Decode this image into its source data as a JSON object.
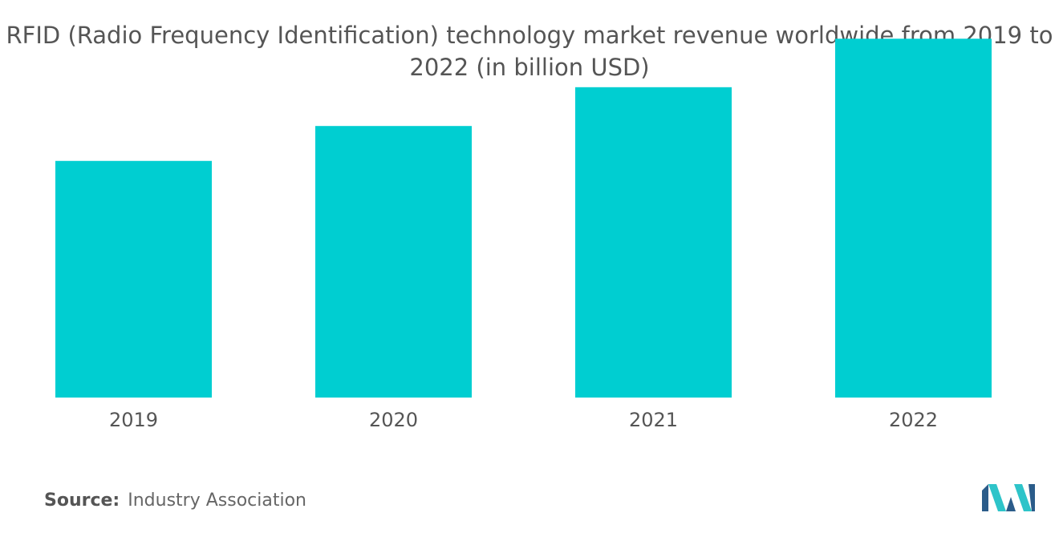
{
  "header": {
    "title_line1": "RFID (Radio Frequency Identification) technology market revenue worldwide from 2019 to",
    "title_line2": "2022 (in billion USD)"
  },
  "footer": {
    "source_label": "Source:",
    "source_value": "Industry Association"
  },
  "colors": {
    "bar": "#00CED1",
    "logo_dark": "#2B5C8A",
    "logo_light": "#2EC4C9"
  },
  "icons": {
    "brand": "mordor-intelligence-logo"
  },
  "chart_data": {
    "type": "bar",
    "title": "RFID (Radio Frequency Identification) technology market revenue worldwide from 2019 to 2022 (in billion USD)",
    "categories": [
      "2019",
      "2020",
      "2021",
      "2022"
    ],
    "values": [
      12.2,
      14.0,
      16.0,
      18.5
    ],
    "xlabel": "",
    "ylabel": "",
    "ylim": [
      0,
      20
    ],
    "grid": false,
    "legend": "none"
  }
}
